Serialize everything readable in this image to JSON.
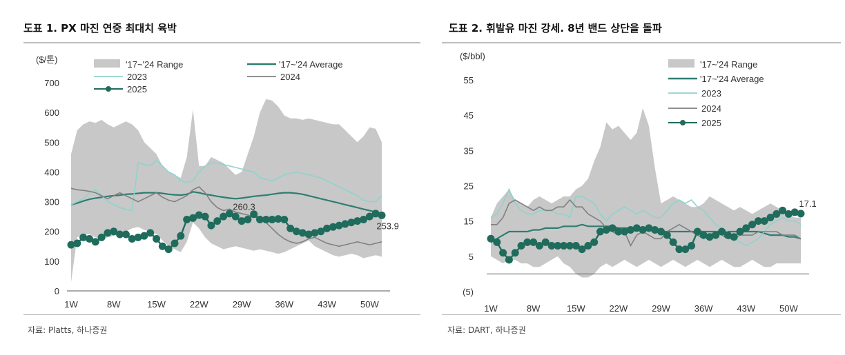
{
  "charts": {
    "left": {
      "title": "도표 1. PX 마진 연중 최대치 육박",
      "source": "자료: Platts, 하나증권"
    },
    "right": {
      "title": "도표 2. 휘발유 마진 강세. 8년 밴드 상단을 돌파",
      "source": "자료: DART, 하나증권"
    }
  },
  "colors": {
    "range": "#c8c8c8",
    "average": "#2e7d72",
    "y2023": "#8fd3cc",
    "y2024": "#808080",
    "y2025": "#1f6b5c"
  },
  "chart_data": [
    {
      "type": "line",
      "title": "도표 1. PX 마진 연중 최대치 육박",
      "ylabel": "($/톤)",
      "ylim": [
        0,
        700
      ],
      "yticks": [
        "700",
        "600",
        "500",
        "400",
        "300",
        "200",
        "100",
        "0"
      ],
      "ytick_values": [
        700,
        600,
        500,
        400,
        300,
        200,
        100,
        0
      ],
      "xticks": [
        "1W",
        "8W",
        "15W",
        "22W",
        "29W",
        "36W",
        "43W",
        "50W"
      ],
      "xtick_weeks": [
        1,
        8,
        15,
        22,
        29,
        36,
        43,
        50
      ],
      "legend": [
        "'17~'24 Range",
        "'17~'24 Average",
        "2023",
        "2024",
        "2025"
      ],
      "annotations": [
        "260.3",
        "253.9"
      ],
      "annotation_points": [
        {
          "week": 28,
          "value": 260.3
        },
        {
          "week": 50,
          "value": 253.9
        }
      ],
      "range_upper": [
        460,
        540,
        560,
        570,
        565,
        575,
        560,
        550,
        560,
        570,
        560,
        540,
        500,
        480,
        460,
        420,
        400,
        390,
        380,
        450,
        610,
        420,
        420,
        450,
        440,
        430,
        410,
        390,
        400,
        460,
        520,
        600,
        645,
        640,
        620,
        590,
        580,
        580,
        575,
        580,
        575,
        570,
        565,
        560,
        560,
        540,
        520,
        500,
        520,
        550,
        545,
        500
      ],
      "range_lower": [
        30,
        180,
        190,
        190,
        180,
        175,
        180,
        185,
        195,
        200,
        210,
        215,
        205,
        200,
        190,
        170,
        150,
        140,
        130,
        165,
        230,
        210,
        180,
        160,
        150,
        140,
        145,
        150,
        145,
        140,
        135,
        140,
        135,
        130,
        125,
        130,
        140,
        150,
        160,
        170,
        150,
        140,
        130,
        120,
        115,
        120,
        125,
        120,
        110,
        115,
        120,
        115
      ],
      "series": [
        {
          "name": "'17~'24 Average",
          "values": [
            290,
            295,
            302,
            308,
            312,
            315,
            318,
            320,
            322,
            325,
            326,
            328,
            330,
            330,
            330,
            328,
            325,
            323,
            322,
            325,
            333,
            330,
            325,
            322,
            318,
            315,
            312,
            310,
            312,
            315,
            318,
            320,
            322,
            325,
            328,
            330,
            330,
            328,
            325,
            320,
            315,
            310,
            305,
            300,
            295,
            290,
            285,
            280,
            275,
            270,
            265,
            260
          ]
        },
        {
          "name": "2023",
          "values": [
            290,
            300,
            310,
            330,
            340,
            320,
            300,
            290,
            280,
            275,
            270,
            430,
            425,
            420,
            440,
            420,
            400,
            390,
            370,
            365,
            370,
            400,
            420,
            430,
            430,
            425,
            420,
            415,
            410,
            405,
            400,
            380,
            375,
            370,
            380,
            390,
            395,
            400,
            395,
            390,
            385,
            380,
            370,
            360,
            350,
            340,
            330,
            320,
            305,
            300,
            300,
            320
          ]
        },
        {
          "name": "2024",
          "values": [
            345,
            340,
            338,
            335,
            330,
            320,
            310,
            320,
            330,
            320,
            310,
            300,
            310,
            320,
            330,
            315,
            305,
            300,
            310,
            320,
            340,
            350,
            330,
            300,
            280,
            270,
            275,
            265,
            260,
            255,
            250,
            240,
            230,
            210,
            190,
            175,
            165,
            160,
            165,
            175,
            180,
            170,
            160,
            155,
            150,
            155,
            160,
            165,
            160,
            155,
            160,
            165
          ]
        },
        {
          "name": "2025",
          "values": [
            155,
            160,
            180,
            175,
            165,
            180,
            195,
            200,
            190,
            190,
            175,
            180,
            185,
            195,
            175,
            150,
            140,
            160,
            185,
            240,
            245,
            255,
            250,
            220,
            235,
            250,
            260,
            250,
            235,
            240,
            258,
            240,
            240,
            240,
            242,
            240,
            210,
            200,
            195,
            190,
            195,
            200,
            210,
            215,
            220,
            225,
            230,
            235,
            240,
            250,
            260,
            254
          ]
        }
      ]
    },
    {
      "type": "line",
      "title": "도표 2. 휘발유 마진 강세. 8년 밴드 상단을 돌파",
      "ylabel": "($/bbl)",
      "ylim": [
        -5,
        55
      ],
      "yticks": [
        "55",
        "45",
        "35",
        "25",
        "15",
        "5",
        "(5)"
      ],
      "ytick_values": [
        55,
        45,
        35,
        25,
        15,
        5,
        -5
      ],
      "xticks": [
        "1W",
        "8W",
        "15W",
        "22W",
        "29W",
        "36W",
        "43W",
        "50W"
      ],
      "xtick_weeks": [
        1,
        8,
        15,
        22,
        29,
        36,
        43,
        50
      ],
      "legend": [
        "'17~'24 Range",
        "'17~'24 Average",
        "2023",
        "2024",
        "2025"
      ],
      "annotations": [
        "17.1"
      ],
      "annotation_points": [
        {
          "week": 50,
          "value": 17.1
        }
      ],
      "range_upper": [
        16,
        20,
        22,
        24,
        21,
        20,
        19,
        21,
        22,
        21,
        20,
        21,
        22,
        22,
        24,
        25,
        27,
        32,
        36,
        43,
        41,
        42,
        40,
        38,
        40,
        47,
        42,
        30,
        20,
        21,
        22,
        21,
        20,
        19,
        19,
        20,
        22,
        21,
        20,
        19,
        18,
        19,
        18,
        17,
        18,
        19,
        20,
        19,
        18,
        17,
        16,
        16
      ],
      "range_lower": [
        5,
        4,
        3,
        4,
        4,
        3,
        3,
        2,
        2,
        3,
        4,
        5,
        3,
        2,
        0,
        -1,
        -1,
        0,
        2,
        3,
        2,
        3,
        4,
        3,
        2,
        3,
        4,
        3,
        2,
        3,
        4,
        3,
        2,
        3,
        4,
        3,
        2,
        3,
        4,
        3,
        2,
        2,
        3,
        4,
        3,
        2,
        2,
        3,
        3,
        3,
        3,
        3
      ],
      "series": [
        {
          "name": "'17~'24 Average",
          "values": [
            9,
            10,
            11,
            12,
            12,
            12,
            12,
            12.5,
            12.5,
            13,
            13,
            13,
            13.5,
            13.5,
            13.5,
            14,
            13.5,
            13.5,
            13.5,
            13.5,
            13.5,
            13,
            13,
            13,
            12.5,
            12.5,
            12.5,
            12,
            12,
            12,
            12,
            12,
            12,
            12,
            12,
            12,
            12,
            12,
            12,
            12,
            12,
            12,
            12,
            12,
            12,
            11.5,
            11,
            11,
            11,
            10.5,
            10.5,
            10
          ]
        },
        {
          "name": "2023",
          "values": [
            16,
            17,
            20,
            24,
            20,
            18,
            17,
            17,
            18,
            18,
            18,
            17,
            17,
            16,
            22,
            22,
            21,
            20,
            17,
            15,
            17,
            18,
            19,
            18,
            17,
            18,
            17,
            16,
            16,
            18,
            20,
            21,
            20,
            21,
            19,
            18,
            16,
            14,
            13,
            12,
            10,
            9,
            8,
            9,
            10,
            12,
            14,
            15,
            16,
            15,
            15,
            14
          ]
        },
        {
          "name": "2024",
          "values": [
            14,
            14,
            16,
            20,
            21,
            20,
            19,
            18,
            19,
            18,
            18,
            19,
            19,
            21,
            19,
            19,
            17,
            16,
            15,
            13,
            12,
            11,
            12,
            8,
            11,
            12,
            11,
            10,
            10,
            12,
            13,
            14,
            13,
            12,
            11,
            10,
            11,
            12,
            11,
            10,
            10,
            11,
            11,
            11,
            12,
            12,
            12,
            12,
            11,
            11,
            11,
            10
          ]
        },
        {
          "name": "2025",
          "values": [
            10,
            9,
            6,
            4,
            6,
            8,
            9,
            9,
            8,
            9,
            8,
            8,
            8,
            8,
            8,
            7,
            8,
            9,
            12,
            12.5,
            13,
            12,
            12,
            12.5,
            13,
            12.5,
            13,
            12.5,
            12,
            11,
            9,
            7,
            7,
            8,
            12,
            11,
            10.5,
            11,
            12,
            11,
            10.5,
            12,
            13,
            14,
            15,
            15,
            16,
            17,
            18,
            17,
            17.5,
            17.1
          ]
        }
      ]
    }
  ]
}
